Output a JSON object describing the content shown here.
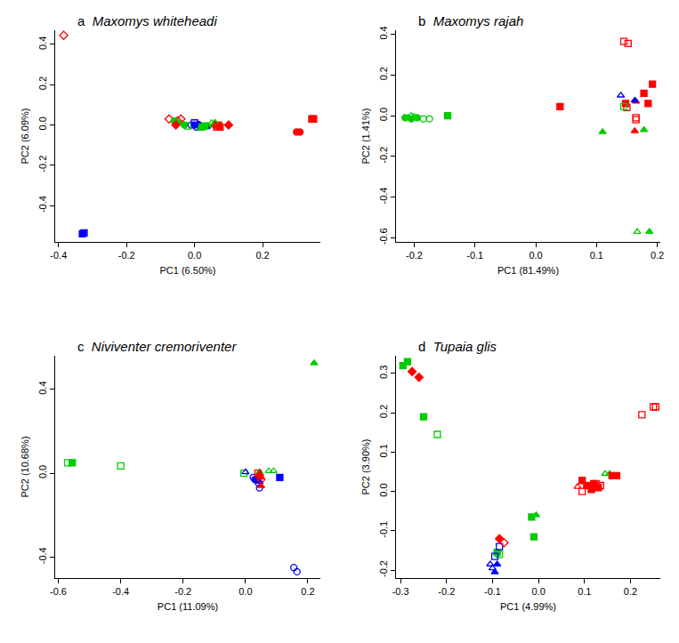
{
  "chart_data": [
    {
      "type": "scatter",
      "panel": "a",
      "title": "Maxomys whiteheadi",
      "x_label": "PC1 (6.50%)",
      "y_label": "PC2 (6.09%)",
      "grid": false,
      "xlim": [
        -0.41,
        0.37
      ],
      "ylim": [
        -0.58,
        0.47
      ],
      "xticks": [
        -0.4,
        -0.2,
        {
          "value": 0,
          "label": "0.0"
        },
        0.2
      ],
      "yticks": [
        -0.4,
        -0.2,
        {
          "value": 0,
          "label": "0.0"
        },
        0.2,
        0.4
      ],
      "series": [
        {
          "color": "#ff0000",
          "marker": "open diamond",
          "x": [
            -0.385,
            -0.075,
            -0.05,
            -0.04
          ],
          "y": [
            0.445,
            0.03,
            0.02,
            0.03
          ]
        },
        {
          "color": "#0000ff",
          "marker": "filled square",
          "x": [
            -0.33,
            -0.325
          ],
          "y": [
            -0.54,
            -0.535
          ]
        },
        {
          "color": "#ff0000",
          "marker": "filled circle",
          "x": [
            0.3,
            0.31
          ],
          "y": [
            -0.035,
            -0.035
          ]
        },
        {
          "color": "#ff0000",
          "marker": "filled square",
          "x": [
            0.345,
            0.35,
            0.07,
            0.075
          ],
          "y": [
            0.03,
            0.03,
            0.0,
            -0.01
          ]
        },
        {
          "color": "#00cc00",
          "marker": "filled circle",
          "x": [
            -0.06,
            -0.05,
            -0.03
          ],
          "y": [
            0.02,
            0.01,
            0.0
          ]
        },
        {
          "color": "#ff0000",
          "marker": "filled diamond",
          "x": [
            -0.055,
            0.01,
            0.06,
            0.1
          ],
          "y": [
            0.0,
            0.0,
            0.0,
            0.0
          ]
        },
        {
          "color": "#0000ff",
          "marker": "filled circle",
          "x": [
            0.0,
            0.012
          ],
          "y": [
            0.0,
            0.002
          ]
        },
        {
          "color": "#0000ff",
          "marker": "open circle",
          "x": [
            -0.01,
            0.005
          ],
          "y": [
            0.0,
            -0.01
          ]
        },
        {
          "color": "#00cc00",
          "marker": "open triangle",
          "x": [
            0.05,
            0.06
          ],
          "y": [
            0.01,
            0.012
          ]
        },
        {
          "color": "#00cc00",
          "marker": "filled triangle",
          "x": [
            0.04
          ],
          "y": [
            -0.005
          ]
        },
        {
          "color": "#0000ff",
          "marker": "filled triangle",
          "x": [
            0.035
          ],
          "y": [
            -0.01
          ]
        },
        {
          "color": "#ff0000",
          "marker": "open square",
          "x": [
            0.065
          ],
          "y": [
            -0.01
          ]
        },
        {
          "color": "#00cc00",
          "marker": "filled square",
          "x": [
            0.02,
            0.03
          ],
          "y": [
            -0.01,
            -0.005
          ]
        },
        {
          "color": "#00cc00",
          "marker": "open square",
          "x": [
            -0.02
          ],
          "y": [
            -0.005
          ]
        },
        {
          "color": "#0000ff",
          "marker": "open square",
          "x": [
            0.0
          ],
          "y": [
            0.01
          ]
        }
      ]
    },
    {
      "type": "scatter",
      "panel": "b",
      "title": "Maxomys rajah",
      "x_label": "PC1 (81.49%)",
      "y_label": "PC2 (1.41%)",
      "grid": false,
      "xlim": [
        -0.23,
        0.205
      ],
      "ylim": [
        -0.62,
        0.42
      ],
      "xticks": [
        -0.2,
        -0.1,
        {
          "value": 0,
          "label": "0.0"
        },
        0.1,
        0.2
      ],
      "yticks": [
        -0.6,
        -0.4,
        -0.2,
        {
          "value": 0,
          "label": "0.0"
        },
        0.2,
        0.4
      ],
      "series": [
        {
          "color": "#ff0000",
          "marker": "open square",
          "x": [
            0.145,
            0.152,
            0.15,
            0.165,
            0.165
          ],
          "y": [
            0.365,
            0.355,
            0.04,
            -0.01,
            -0.02
          ]
        },
        {
          "color": "#00cc00",
          "marker": "open triangle",
          "x": [
            0.167,
            -0.205,
            -0.2
          ],
          "y": [
            -0.57,
            0.0,
            -0.005
          ]
        },
        {
          "color": "#00cc00",
          "marker": "filled triangle",
          "x": [
            0.187,
            -0.21,
            0.11,
            0.178
          ],
          "y": [
            -0.57,
            -0.01,
            -0.08,
            -0.07
          ]
        },
        {
          "color": "#00cc00",
          "marker": "filled circle",
          "x": [
            -0.215,
            -0.205,
            -0.195
          ],
          "y": [
            -0.01,
            -0.015,
            -0.01
          ]
        },
        {
          "color": "#00cc00",
          "marker": "open circle",
          "x": [
            -0.185,
            -0.175
          ],
          "y": [
            -0.015,
            -0.015
          ]
        },
        {
          "color": "#00cc00",
          "marker": "filled square",
          "x": [
            -0.145
          ],
          "y": [
            0.0
          ]
        },
        {
          "color": "#ff0000",
          "marker": "filled square",
          "x": [
            0.04,
            0.148,
            0.178,
            0.185,
            0.192
          ],
          "y": [
            0.045,
            0.06,
            0.11,
            0.06,
            0.155
          ]
        },
        {
          "color": "#ff0000",
          "marker": "filled triangle",
          "x": [
            0.163,
            0.165
          ],
          "y": [
            -0.075,
            0.07
          ]
        },
        {
          "color": "#0000ff",
          "marker": "open triangle",
          "x": [
            0.14
          ],
          "y": [
            0.1
          ]
        },
        {
          "color": "#00cc00",
          "marker": "open square",
          "x": [
            0.145
          ],
          "y": [
            0.045
          ]
        },
        {
          "color": "#0000ff",
          "marker": "filled triangle",
          "x": [
            0.163
          ],
          "y": [
            0.075
          ]
        }
      ]
    },
    {
      "type": "scatter",
      "panel": "c",
      "title": "Niviventer cremoriventer",
      "x_label": "PC1 (11.09%)",
      "y_label": "PC2 (10.68%)",
      "grid": false,
      "xlim": [
        -0.61,
        0.24
      ],
      "ylim": [
        -0.5,
        0.56
      ],
      "xticks": [
        -0.6,
        -0.4,
        -0.2,
        {
          "value": 0,
          "label": "0.0"
        },
        0.2
      ],
      "yticks": [
        -0.4,
        {
          "value": 0,
          "label": "0.0"
        },
        0.4
      ],
      "series": [
        {
          "color": "#00cc00",
          "marker": "filled triangle",
          "x": [
            0.22,
            0.045
          ],
          "y": [
            0.525,
            0.005
          ]
        },
        {
          "color": "#00cc00",
          "marker": "open square",
          "x": [
            -0.57,
            -0.4,
            -0.005
          ],
          "y": [
            0.05,
            0.035,
            0.0
          ]
        },
        {
          "color": "#00cc00",
          "marker": "filled square",
          "x": [
            -0.555
          ],
          "y": [
            0.05
          ]
        },
        {
          "color": "#0000ff",
          "marker": "open circle",
          "x": [
            0.155,
            0.165,
            0.025,
            0.045,
            0.04
          ],
          "y": [
            -0.45,
            -0.47,
            -0.02,
            -0.07,
            -0.045
          ]
        },
        {
          "color": "#0000ff",
          "marker": "open triangle",
          "x": [
            0.0
          ],
          "y": [
            0.005
          ]
        },
        {
          "color": "#00cc00",
          "marker": "open triangle",
          "x": [
            0.075,
            0.09
          ],
          "y": [
            0.01,
            0.01
          ]
        },
        {
          "color": "#0000ff",
          "marker": "filled circle",
          "x": [
            0.03
          ],
          "y": [
            -0.03
          ]
        },
        {
          "color": "#0000ff",
          "marker": "filled square",
          "x": [
            0.11
          ],
          "y": [
            -0.02
          ]
        },
        {
          "color": "#ff0000",
          "marker": "filled triangle",
          "x": [
            0.05,
            0.05
          ],
          "y": [
            -0.02,
            -0.06
          ]
        },
        {
          "color": "#0000ff",
          "marker": "filled triangle",
          "x": [
            0.045
          ],
          "y": [
            -0.04
          ]
        },
        {
          "color": "#ff0000",
          "marker": "open diamond",
          "x": [
            0.05
          ],
          "y": [
            -0.03
          ]
        },
        {
          "color": "#ff0000",
          "marker": "filled diamond",
          "x": [
            0.045
          ],
          "y": [
            -0.01
          ]
        },
        {
          "color": "#ff0000",
          "marker": "open square",
          "x": [
            0.04
          ],
          "y": [
            0.0
          ]
        }
      ]
    },
    {
      "type": "scatter",
      "panel": "d",
      "title": "Tupaia glis",
      "x_label": "PC1 (4.99%)",
      "y_label": "PC2 (3.90%)",
      "grid": false,
      "xlim": [
        -0.31,
        0.265
      ],
      "ylim": [
        -0.22,
        0.345
      ],
      "xticks": [
        -0.3,
        -0.2,
        -0.1,
        {
          "value": 0,
          "label": "0.0"
        },
        0.1,
        0.2
      ],
      "yticks": [
        -0.2,
        -0.1,
        {
          "value": 0,
          "label": "0.0"
        },
        0.1,
        0.2,
        0.3
      ],
      "series": [
        {
          "color": "#00cc00",
          "marker": "filled square",
          "x": [
            -0.295,
            -0.285,
            -0.25,
            -0.015,
            -0.01,
            -0.09
          ],
          "y": [
            0.32,
            0.33,
            0.19,
            -0.065,
            -0.115,
            -0.155
          ]
        },
        {
          "color": "#ff0000",
          "marker": "filled diamond",
          "x": [
            -0.275,
            -0.26,
            -0.085
          ],
          "y": [
            0.305,
            0.29,
            -0.12
          ]
        },
        {
          "color": "#00cc00",
          "marker": "open square",
          "x": [
            -0.22,
            -0.085
          ],
          "y": [
            0.145,
            -0.16
          ]
        },
        {
          "color": "#00cc00",
          "marker": "filled triangle",
          "x": [
            -0.005,
            0.155
          ],
          "y": [
            -0.06,
            0.045
          ]
        },
        {
          "color": "#ff0000",
          "marker": "filled square",
          "x": [
            0.16,
            0.17,
            0.105,
            0.12,
            0.115,
            0.13,
            0.095
          ],
          "y": [
            0.04,
            0.04,
            0.015,
            0.02,
            0.005,
            0.01,
            0.028
          ]
        },
        {
          "color": "#ff0000",
          "marker": "open triangle",
          "x": [
            0.085
          ],
          "y": [
            0.012
          ]
        },
        {
          "color": "#ff0000",
          "marker": "open square",
          "x": [
            0.095,
            0.135,
            0.125,
            0.225,
            0.25,
            0.255
          ],
          "y": [
            0.0,
            0.015,
            0.02,
            0.195,
            0.215,
            0.215
          ]
        },
        {
          "color": "#ff0000",
          "marker": "filled triangle",
          "x": [
            0.12
          ],
          "y": [
            0.01
          ]
        },
        {
          "color": "#00cc00",
          "marker": "open triangle",
          "x": [
            0.145
          ],
          "y": [
            0.045
          ]
        },
        {
          "color": "#0000ff",
          "marker": "open triangle",
          "x": [
            -0.105,
            -0.1
          ],
          "y": [
            -0.185,
            -0.195
          ]
        },
        {
          "color": "#0000ff",
          "marker": "filled triangle",
          "x": [
            -0.095,
            -0.09
          ],
          "y": [
            -0.205,
            -0.185
          ]
        },
        {
          "color": "#0000ff",
          "marker": "open square",
          "x": [
            -0.095,
            -0.085
          ],
          "y": [
            -0.165,
            -0.14
          ]
        },
        {
          "color": "#ff0000",
          "marker": "open diamond",
          "x": [
            -0.075
          ],
          "y": [
            -0.13
          ]
        }
      ]
    }
  ]
}
